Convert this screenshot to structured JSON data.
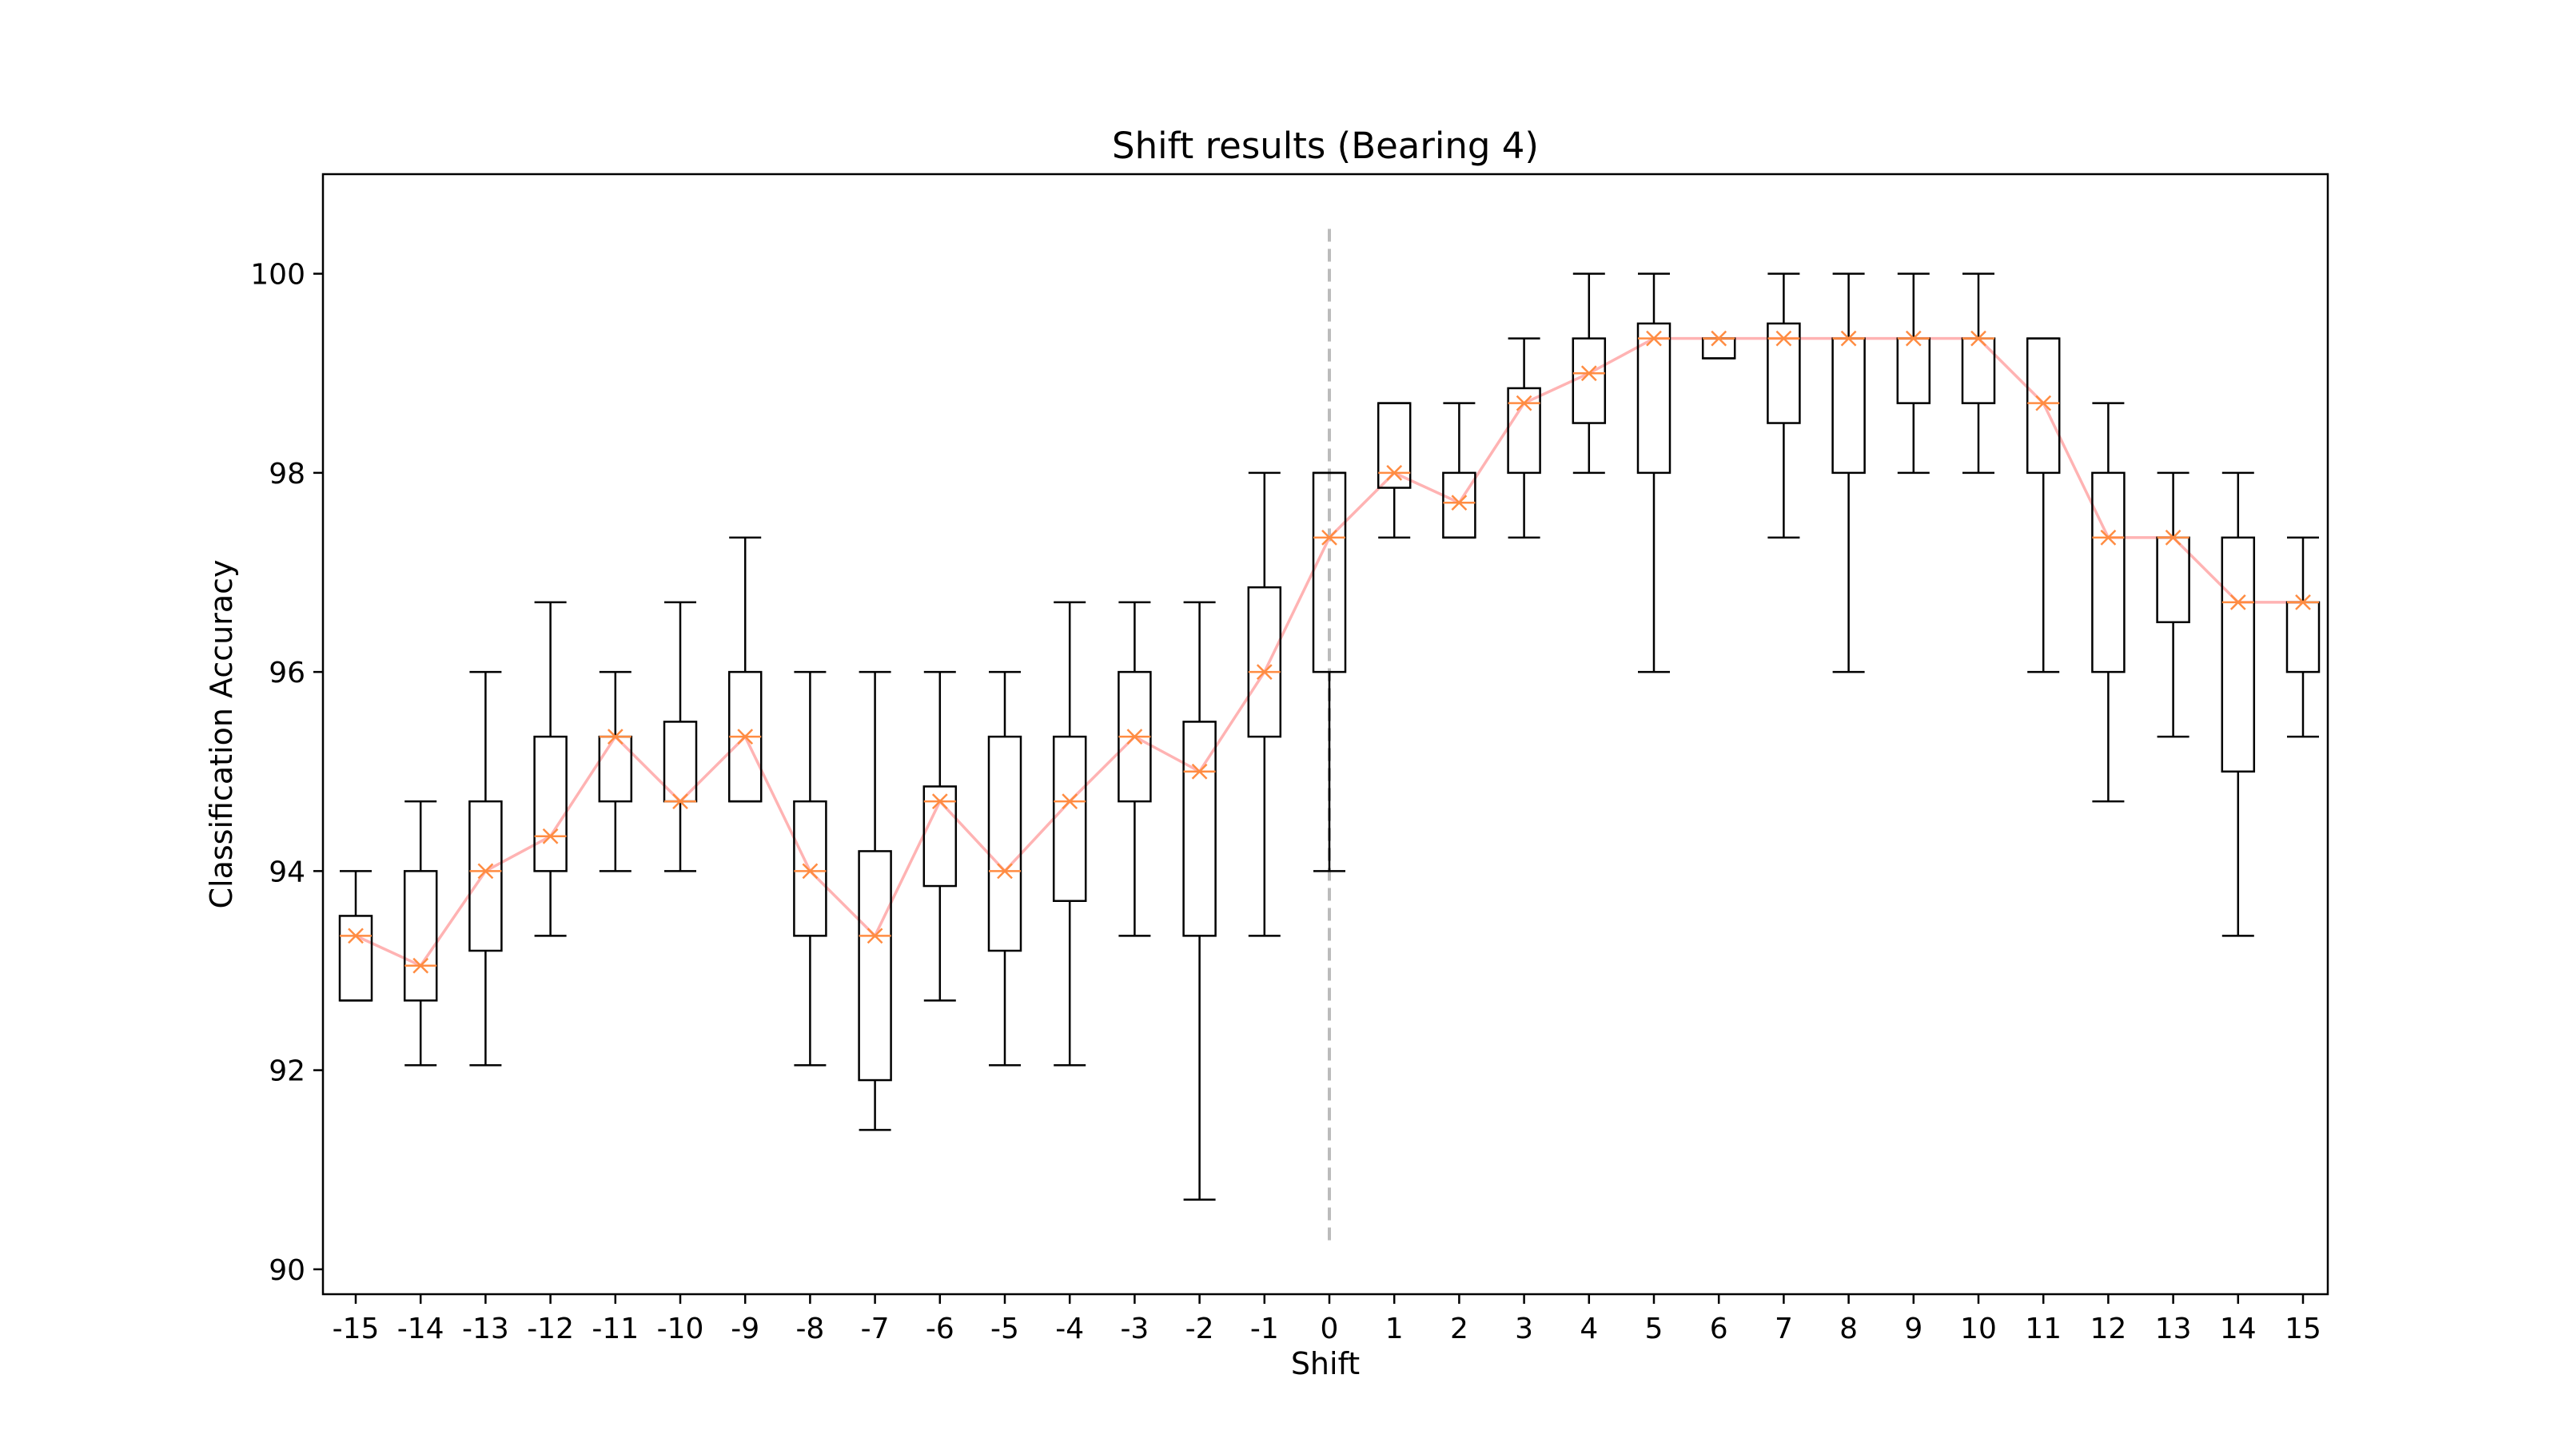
{
  "chart_data": {
    "type": "box",
    "title": "Shift results (Bearing 4)",
    "xlabel": "Shift",
    "ylabel": "Classification Accuracy",
    "ylim": [
      89.75,
      101.0
    ],
    "yticks": [
      90,
      92,
      94,
      96,
      98,
      100
    ],
    "grid": false,
    "legend": "none",
    "reference_line": {
      "x": "0",
      "style": "dashed",
      "color": "#bbbbbb"
    },
    "median_line_color": "#ffb3b3",
    "median_marker_color": "#ff8c42",
    "box_color": "#000000",
    "categories": [
      "-15",
      "-14",
      "-13",
      "-12",
      "-11",
      "-10",
      "-9",
      "-8",
      "-7",
      "-6",
      "-5",
      "-4",
      "-3",
      "-2",
      "-1",
      "0",
      "1",
      "2",
      "3",
      "4",
      "5",
      "6",
      "7",
      "8",
      "9",
      "10",
      "11",
      "12",
      "13",
      "14",
      "15"
    ],
    "boxes": [
      {
        "whisker_low": 92.7,
        "q1": 92.7,
        "median": 93.35,
        "q3": 93.55,
        "whisker_high": 94.0
      },
      {
        "whisker_low": 92.05,
        "q1": 92.7,
        "median": 93.05,
        "q3": 94.0,
        "whisker_high": 94.7
      },
      {
        "whisker_low": 92.05,
        "q1": 93.2,
        "median": 94.0,
        "q3": 94.7,
        "whisker_high": 96.0
      },
      {
        "whisker_low": 93.35,
        "q1": 94.0,
        "median": 94.35,
        "q3": 95.35,
        "whisker_high": 96.7
      },
      {
        "whisker_low": 94.0,
        "q1": 94.7,
        "median": 95.35,
        "q3": 95.35,
        "whisker_high": 96.0
      },
      {
        "whisker_low": 94.0,
        "q1": 94.7,
        "median": 94.7,
        "q3": 95.5,
        "whisker_high": 96.7
      },
      {
        "whisker_low": 94.7,
        "q1": 94.7,
        "median": 95.35,
        "q3": 96.0,
        "whisker_high": 97.35
      },
      {
        "whisker_low": 92.05,
        "q1": 93.35,
        "median": 94.0,
        "q3": 94.7,
        "whisker_high": 96.0
      },
      {
        "whisker_low": 91.4,
        "q1": 91.9,
        "median": 93.35,
        "q3": 94.2,
        "whisker_high": 96.0
      },
      {
        "whisker_low": 92.7,
        "q1": 93.85,
        "median": 94.7,
        "q3": 94.85,
        "whisker_high": 96.0
      },
      {
        "whisker_low": 92.05,
        "q1": 93.2,
        "median": 94.0,
        "q3": 95.35,
        "whisker_high": 96.0
      },
      {
        "whisker_low": 92.05,
        "q1": 93.7,
        "median": 94.7,
        "q3": 95.35,
        "whisker_high": 96.7
      },
      {
        "whisker_low": 93.35,
        "q1": 94.7,
        "median": 95.35,
        "q3": 96.0,
        "whisker_high": 96.7
      },
      {
        "whisker_low": 90.7,
        "q1": 93.35,
        "median": 95.0,
        "q3": 95.5,
        "whisker_high": 96.7
      },
      {
        "whisker_low": 93.35,
        "q1": 95.35,
        "median": 96.0,
        "q3": 96.85,
        "whisker_high": 98.0
      },
      {
        "whisker_low": 94.0,
        "q1": 96.0,
        "median": 97.35,
        "q3": 98.0,
        "whisker_high": 98.0
      },
      {
        "whisker_low": 97.35,
        "q1": 97.85,
        "median": 98.0,
        "q3": 98.7,
        "whisker_high": 98.7
      },
      {
        "whisker_low": 97.35,
        "q1": 97.35,
        "median": 97.7,
        "q3": 98.0,
        "whisker_high": 98.7
      },
      {
        "whisker_low": 97.35,
        "q1": 98.0,
        "median": 98.7,
        "q3": 98.85,
        "whisker_high": 99.35
      },
      {
        "whisker_low": 98.0,
        "q1": 98.5,
        "median": 99.0,
        "q3": 99.35,
        "whisker_high": 100.0
      },
      {
        "whisker_low": 96.0,
        "q1": 98.0,
        "median": 99.35,
        "q3": 99.5,
        "whisker_high": 100.0
      },
      {
        "whisker_low": 99.15,
        "q1": 99.15,
        "median": 99.35,
        "q3": 99.35,
        "whisker_high": 99.35
      },
      {
        "whisker_low": 97.35,
        "q1": 98.5,
        "median": 99.35,
        "q3": 99.5,
        "whisker_high": 100.0
      },
      {
        "whisker_low": 96.0,
        "q1": 98.0,
        "median": 99.35,
        "q3": 99.35,
        "whisker_high": 100.0
      },
      {
        "whisker_low": 98.0,
        "q1": 98.7,
        "median": 99.35,
        "q3": 99.35,
        "whisker_high": 100.0
      },
      {
        "whisker_low": 98.0,
        "q1": 98.7,
        "median": 99.35,
        "q3": 99.35,
        "whisker_high": 100.0
      },
      {
        "whisker_low": 96.0,
        "q1": 98.0,
        "median": 98.7,
        "q3": 99.35,
        "whisker_high": 99.35
      },
      {
        "whisker_low": 94.7,
        "q1": 96.0,
        "median": 97.35,
        "q3": 98.0,
        "whisker_high": 98.7
      },
      {
        "whisker_low": 95.35,
        "q1": 96.5,
        "median": 97.35,
        "q3": 97.35,
        "whisker_high": 98.0
      },
      {
        "whisker_low": 93.35,
        "q1": 95.0,
        "median": 96.7,
        "q3": 97.35,
        "whisker_high": 98.0
      },
      {
        "whisker_low": 95.35,
        "q1": 96.0,
        "median": 96.7,
        "q3": 96.7,
        "whisker_high": 97.35
      }
    ]
  }
}
